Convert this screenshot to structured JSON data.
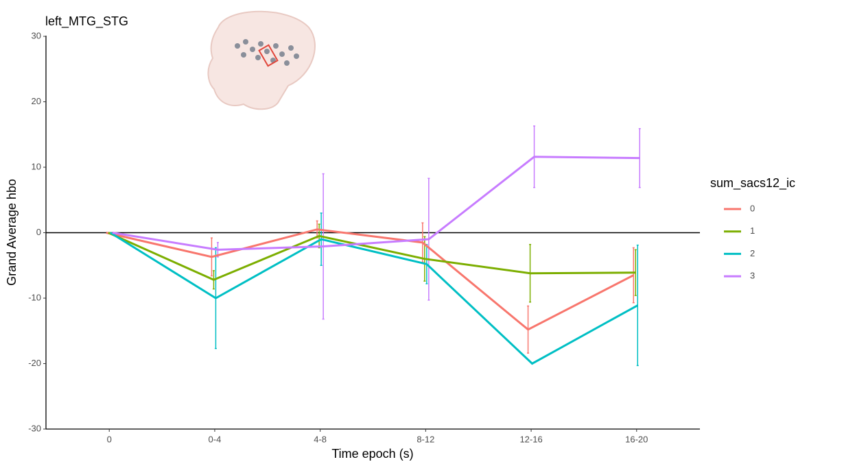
{
  "chart_data": {
    "type": "line",
    "title": "left_MTG_STG",
    "x_label": "Time epoch (s)",
    "y_label": "Grand Average hbo",
    "categories": [
      "0",
      "0-4",
      "4-8",
      "8-12",
      "12-16",
      "16-20"
    ],
    "ylim": [
      -30,
      30
    ],
    "yticks": [
      -30,
      -20,
      -10,
      0,
      10,
      20,
      30
    ],
    "hline": 0,
    "legend_title": "sum_sacs12_ic",
    "legend_position": "right",
    "series": [
      {
        "name": "0",
        "color": "#F8766D",
        "values": [
          0,
          -3.7,
          0.5,
          -1.5,
          -14.8,
          -6.5
        ],
        "errors": [
          null,
          2.9,
          1.3,
          3,
          3.6,
          4.2
        ]
      },
      {
        "name": "1",
        "color": "#7CAE00",
        "values": [
          0,
          -7.2,
          -0.5,
          -4,
          -6.2,
          -6.1
        ],
        "errors": [
          null,
          1.4,
          1.8,
          3.4,
          4.4,
          3.5
        ]
      },
      {
        "name": "2",
        "color": "#00BFC4",
        "values": [
          0,
          -10,
          -1,
          -4.8,
          -20,
          -11.1
        ],
        "errors": [
          null,
          7.7,
          4,
          3,
          null,
          9.2
        ]
      },
      {
        "name": "3",
        "color": "#C77CFF",
        "values": [
          0,
          -2.6,
          -2.1,
          -1,
          11.6,
          11.4
        ],
        "errors": [
          null,
          1.1,
          11.1,
          9.3,
          4.7,
          4.5
        ]
      }
    ]
  }
}
